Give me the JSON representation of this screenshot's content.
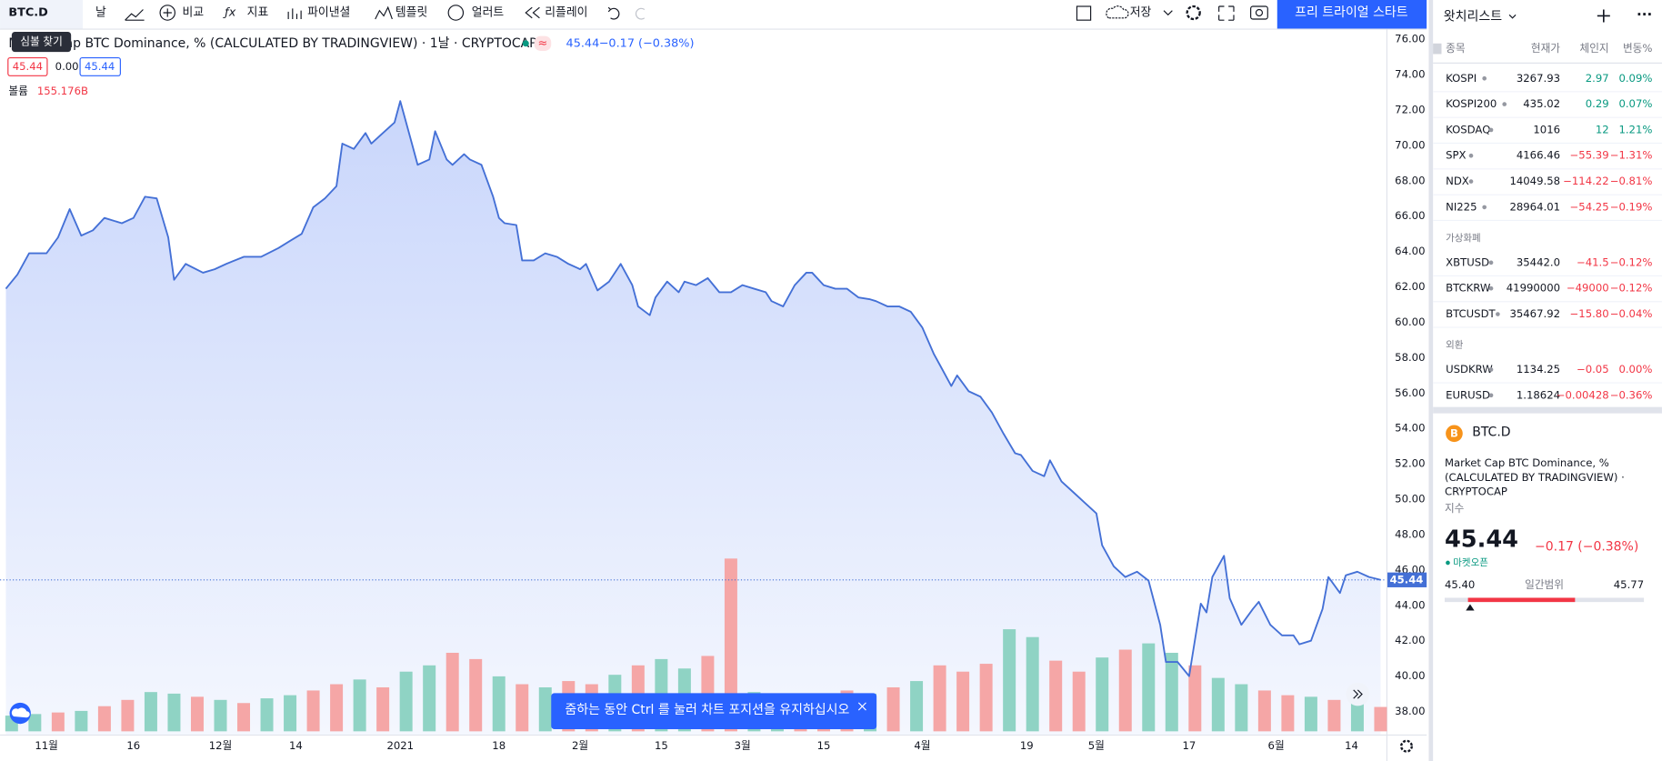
{
  "toolbar": {
    "symbol": "BTC.D",
    "tooltip": "심볼 찾기",
    "interval": "날",
    "items": [
      "비교",
      "지표",
      "파이낸셜",
      "템플릿",
      "얼러트",
      "리플레이"
    ],
    "save": "저장",
    "trial": "프리 트라이얼 스타트"
  },
  "legend": {
    "title": "Market Cap BTC Dominance, % (CALCULATED BY TRADINGVIEW) · 1날 · CRYPTOCAP",
    "price": "45.44",
    "change": "−0.17 (−0.38%)",
    "open": "45.44",
    "mid": "0.00",
    "close": "45.44",
    "volume_label": "볼륨",
    "volume_value": "155.176B"
  },
  "chart_data": {
    "type": "area",
    "color": "#4470d6",
    "x": [
      1,
      3,
      5,
      8,
      10,
      12,
      14,
      16,
      18,
      21,
      23,
      25,
      27,
      29,
      30,
      32,
      35,
      37,
      39,
      42,
      45,
      48,
      50,
      52,
      54,
      56,
      58,
      59,
      61,
      63,
      64,
      66,
      68,
      69,
      71,
      72,
      74,
      75,
      77,
      78,
      80,
      81,
      83,
      85,
      86,
      87,
      89,
      90,
      92,
      94,
      96,
      98,
      100,
      101,
      103,
      105,
      107,
      109,
      110,
      112,
      113,
      115,
      117,
      118,
      120,
      122,
      124,
      126,
      128,
      130,
      132,
      133,
      135,
      137,
      139,
      140,
      142,
      144,
      146,
      148,
      150,
      151,
      153,
      155,
      157,
      159,
      161,
      162,
      164,
      165,
      167,
      169,
      171,
      173,
      175,
      176,
      178,
      180,
      181,
      183,
      185,
      187,
      189,
      190,
      192,
      194,
      196,
      198,
      200,
      201,
      203,
      205,
      207,
      208,
      209,
      211,
      212,
      214,
      216,
      217,
      219,
      221,
      223,
      224,
      226,
      228,
      229,
      231,
      232,
      234,
      236,
      238
    ],
    "values": [
      61.9,
      62.7,
      63.9,
      63.9,
      64.8,
      66.4,
      64.9,
      65.2,
      65.9,
      65.6,
      65.9,
      67.1,
      67.0,
      64.8,
      62.4,
      63.3,
      62.8,
      63.0,
      63.3,
      63.7,
      63.7,
      64.2,
      64.6,
      65.0,
      66.5,
      67.0,
      67.7,
      70.1,
      69.8,
      70.7,
      70.1,
      70.7,
      71.3,
      72.5,
      70.1,
      68.9,
      69.2,
      70.8,
      69.2,
      68.9,
      69.5,
      69.2,
      68.9,
      67.1,
      65.9,
      65.6,
      65.5,
      63.5,
      63.5,
      63.9,
      63.7,
      63.3,
      63.0,
      63.3,
      61.8,
      62.3,
      63.3,
      62.1,
      60.9,
      60.4,
      61.4,
      62.3,
      61.7,
      62.3,
      62.1,
      62.5,
      61.7,
      61.7,
      62.1,
      61.9,
      61.7,
      61.2,
      60.9,
      62.1,
      62.8,
      62.8,
      62.1,
      61.9,
      61.9,
      61.4,
      61.3,
      61.2,
      60.9,
      60.9,
      60.6,
      59.7,
      58.2,
      57.6,
      56.4,
      57.0,
      56.1,
      55.8,
      54.9,
      53.7,
      52.6,
      52.5,
      51.6,
      51.3,
      52.2,
      51.0,
      50.4,
      49.8,
      49.2,
      47.4,
      46.2,
      45.6,
      45.9,
      45.4,
      42.9,
      40.8,
      40.8,
      40.0,
      44.1,
      43.6,
      45.6,
      46.8,
      44.4,
      42.9,
      43.8,
      44.2,
      42.9,
      42.3,
      42.3,
      41.8,
      42.0,
      43.8,
      45.6,
      44.7,
      45.7,
      45.9,
      45.6,
      45.44
    ],
    "xlim": [
      0,
      239
    ],
    "xticks": [
      {
        "value": 8,
        "label": "11월"
      },
      {
        "value": 23,
        "label": "16"
      },
      {
        "value": 38,
        "label": "12월"
      },
      {
        "value": 51,
        "label": "14"
      },
      {
        "value": 69,
        "label": "2021"
      },
      {
        "value": 86,
        "label": "18"
      },
      {
        "value": 100,
        "label": "2월"
      },
      {
        "value": 114,
        "label": "15"
      },
      {
        "value": 128,
        "label": "3월"
      },
      {
        "value": 142,
        "label": "15"
      },
      {
        "value": 159,
        "label": "4월"
      },
      {
        "value": 177,
        "label": "19"
      },
      {
        "value": 189,
        "label": "5월"
      },
      {
        "value": 205,
        "label": "17"
      },
      {
        "value": 220,
        "label": "6월"
      },
      {
        "value": 233,
        "label": "14"
      }
    ],
    "ylim": [
      36.7,
      76.6
    ],
    "yticks": [
      {
        "value": 38,
        "label": "38.00"
      },
      {
        "value": 40,
        "label": "40.00"
      },
      {
        "value": 42,
        "label": "42.00"
      },
      {
        "value": 44,
        "label": "44.00"
      },
      {
        "value": 46,
        "label": "46.00"
      },
      {
        "value": 48,
        "label": "48.00"
      },
      {
        "value": 50,
        "label": "50.00"
      },
      {
        "value": 52,
        "label": "52.00"
      },
      {
        "value": 54,
        "label": "54.00"
      },
      {
        "value": 56,
        "label": "56.00"
      },
      {
        "value": 58,
        "label": "58.00"
      },
      {
        "value": 60,
        "label": "60.00"
      },
      {
        "value": 62,
        "label": "62.00"
      },
      {
        "value": 64,
        "label": "64.00"
      },
      {
        "value": 66,
        "label": "66.00"
      },
      {
        "value": 68,
        "label": "68.00"
      },
      {
        "value": 70,
        "label": "70.00"
      },
      {
        "value": 72,
        "label": "72.00"
      },
      {
        "value": 74,
        "label": "74.00"
      },
      {
        "value": 76,
        "label": "76.00"
      }
    ],
    "last_price": {
      "value": 45.44,
      "label": "45.44"
    },
    "volume": {
      "x": [
        2,
        6,
        10,
        14,
        18,
        22,
        26,
        30,
        34,
        38,
        42,
        46,
        50,
        54,
        58,
        62,
        66,
        70,
        74,
        78,
        82,
        86,
        90,
        94,
        98,
        102,
        106,
        110,
        114,
        118,
        122,
        126,
        130,
        134,
        138,
        142,
        146,
        150,
        154,
        158,
        162,
        166,
        170,
        174,
        178,
        182,
        186,
        190,
        194,
        198,
        202,
        206,
        210,
        214,
        218,
        222,
        226,
        230,
        234,
        238
      ],
      "values": [
        100,
        110,
        120,
        130,
        160,
        200,
        250,
        240,
        220,
        200,
        180,
        210,
        230,
        260,
        300,
        330,
        280,
        380,
        420,
        500,
        460,
        350,
        300,
        280,
        320,
        300,
        360,
        420,
        460,
        400,
        480,
        1100,
        250,
        230,
        200,
        220,
        260,
        240,
        280,
        320,
        420,
        380,
        430,
        650,
        600,
        450,
        380,
        470,
        520,
        560,
        500,
        420,
        340,
        300,
        260,
        230,
        220,
        200,
        180,
        155.176
      ],
      "colors": [
        "#8fd3c4",
        "#8fd3c4",
        "#f5a6a6",
        "#8fd3c4",
        "#f5a6a6",
        "#f5a6a6",
        "#8fd3c4",
        "#8fd3c4",
        "#f5a6a6",
        "#8fd3c4",
        "#f5a6a6",
        "#8fd3c4",
        "#8fd3c4",
        "#f5a6a6",
        "#f5a6a6",
        "#8fd3c4",
        "#f5a6a6",
        "#8fd3c4",
        "#8fd3c4",
        "#f5a6a6",
        "#f5a6a6",
        "#8fd3c4",
        "#f5a6a6",
        "#8fd3c4",
        "#f5a6a6",
        "#f5a6a6",
        "#8fd3c4",
        "#f5a6a6",
        "#8fd3c4",
        "#8fd3c4",
        "#f5a6a6",
        "#f5a6a6",
        "#8fd3c4",
        "#8fd3c4",
        "#f5a6a6",
        "#f5a6a6",
        "#f5a6a6",
        "#8fd3c4",
        "#f5a6a6",
        "#8fd3c4",
        "#f5a6a6",
        "#f5a6a6",
        "#f5a6a6",
        "#8fd3c4",
        "#8fd3c4",
        "#f5a6a6",
        "#f5a6a6",
        "#8fd3c4",
        "#f5a6a6",
        "#8fd3c4",
        "#8fd3c4",
        "#f5a6a6",
        "#8fd3c4",
        "#8fd3c4",
        "#f5a6a6",
        "#f5a6a6",
        "#8fd3c4",
        "#f5a6a6",
        "#8fd3c4",
        "#f5a6a6"
      ]
    }
  },
  "toast": "줌하는 동안 Ctrl 를 눌러 차트 포지션을 유지하십시오",
  "watchlist": {
    "title": "왓치리스트",
    "columns": [
      "종목",
      "현재가",
      "체인지",
      "변동%"
    ],
    "rows": [
      {
        "symbol": "KOSPI",
        "price": "3267.93",
        "change": "2.97",
        "percent": "0.09%",
        "color": "#089981"
      },
      {
        "symbol": "KOSPI200",
        "price": "435.02",
        "change": "0.29",
        "percent": "0.07%",
        "color": "#089981"
      },
      {
        "symbol": "KOSDAQ",
        "price": "1016",
        "change": "12",
        "percent": "1.21%",
        "color": "#089981"
      },
      {
        "symbol": "SPX",
        "price": "4166.46",
        "change": "−55.39",
        "percent": "−1.31%",
        "color": "#f23645"
      },
      {
        "symbol": "NDX",
        "price": "14049.58",
        "change": "−114.22",
        "percent": "−0.81%",
        "color": "#f23645"
      },
      {
        "symbol": "NI225",
        "price": "28964.01",
        "change": "−54.25",
        "percent": "−0.19%",
        "color": "#f23645"
      }
    ],
    "sections": [
      {
        "title": "가상화폐",
        "rows": [
          {
            "symbol": "XBTUSD",
            "price": "35442.0",
            "change": "−41.5",
            "percent": "−0.12%",
            "color": "#f23645"
          },
          {
            "symbol": "BTCKRW",
            "price": "41990000",
            "change": "−49000",
            "percent": "−0.12%",
            "color": "#f23645"
          },
          {
            "symbol": "BTCUSDT",
            "price": "35467.92",
            "change": "−15.80",
            "percent": "−0.04%",
            "color": "#f23645"
          }
        ]
      },
      {
        "title": "외환",
        "rows": [
          {
            "symbol": "USDKRW",
            "price": "1134.25",
            "change": "−0.05",
            "percent": "0.00%",
            "color": "#f23645"
          },
          {
            "symbol": "EURUSD",
            "price": "1.18624",
            "change": "−0.00428",
            "percent": "−0.36%",
            "color": "#f23645"
          }
        ]
      }
    ]
  },
  "details": {
    "symbol": "BTC.D",
    "description": [
      "Market Cap BTC Dominance, %",
      "(CALCULATED BY TRADINGVIEW) ·",
      "CRYPTOCAP"
    ],
    "kind": "지수",
    "price": "45.44",
    "change": "−0.17 (−0.38%)",
    "status": "마켓오픈",
    "low": "45.40",
    "range_label": "일간범위",
    "high": "45.77"
  }
}
